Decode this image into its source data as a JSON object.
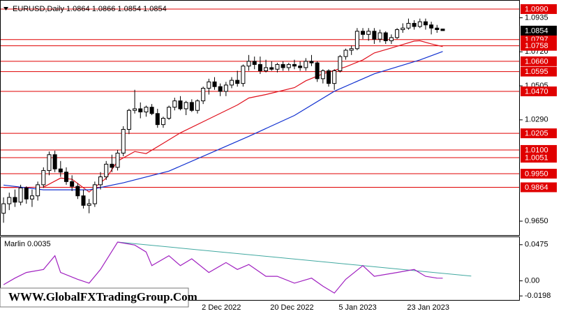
{
  "chart_data": [
    {
      "type": "candlestick",
      "title": "EURUSD,Daily  1.0864 1.0866 1.0854 1.0854",
      "categories": [
        null,
        null,
        null,
        null,
        null,
        null,
        null,
        null,
        null,
        null,
        null,
        null,
        null,
        null,
        null,
        null,
        null,
        null,
        null,
        null,
        null,
        null,
        null,
        null,
        null,
        null,
        null,
        null,
        null,
        null,
        null,
        null,
        null,
        null,
        null,
        "2 Dec 2022",
        null,
        null,
        null,
        null,
        null,
        null,
        null,
        null,
        null,
        null,
        null,
        "20 Dec 2022",
        null,
        null,
        null,
        null,
        null,
        null,
        null,
        null,
        null,
        null,
        null,
        "5 Jan 2023",
        null,
        null,
        null,
        null,
        null,
        null,
        null,
        null,
        null,
        null,
        null,
        "23 Jan 2023",
        null,
        null,
        null,
        null,
        null,
        null
      ],
      "open": [
        0.97,
        0.976,
        0.98,
        0.977,
        0.986,
        0.979,
        0.981,
        0.988,
        0.997,
        1.007,
        0.998,
        0.996,
        0.99,
        0.987,
        0.981,
        0.975,
        0.976,
        0.988,
        0.993,
        1.001,
        0.999,
        1.008,
        1.023,
        1.035,
        1.036,
        1.034,
        1.037,
        1.033,
        1.026,
        1.03,
        1.037,
        1.041,
        1.036,
        1.04,
        1.035,
        1.041,
        1.049,
        1.053,
        1.05,
        1.047,
        1.051,
        1.054,
        1.052,
        1.063,
        1.066,
        1.064,
        1.06,
        1.062,
        1.061,
        1.064,
        1.062,
        1.064,
        1.063,
        1.062,
        1.066,
        1.065,
        1.055,
        1.06,
        1.052,
        1.06,
        1.069,
        1.073,
        1.074,
        1.085,
        1.083,
        1.085,
        1.08,
        1.084,
        1.079,
        1.081,
        1.086,
        1.087,
        1.09,
        1.088,
        1.091,
        1.089,
        1.087,
        1.0864
      ],
      "high": [
        0.98,
        0.983,
        0.985,
        0.988,
        0.987,
        0.985,
        0.99,
        0.999,
        1.009,
        1.0095,
        1.003,
        0.999,
        0.994,
        0.989,
        0.985,
        0.979,
        0.99,
        0.996,
        1.003,
        1.007,
        1.01,
        1.025,
        1.036,
        1.048,
        1.04,
        1.038,
        1.039,
        1.036,
        1.031,
        1.038,
        1.043,
        1.044,
        1.041,
        1.042,
        1.042,
        1.05,
        1.055,
        1.056,
        1.052,
        1.053,
        1.056,
        1.06,
        1.064,
        1.07,
        1.069,
        1.069,
        1.067,
        1.066,
        1.065,
        1.066,
        1.065,
        1.067,
        1.066,
        1.068,
        1.07,
        1.066,
        1.061,
        1.061,
        1.061,
        1.07,
        1.074,
        1.076,
        1.087,
        1.087,
        1.087,
        1.087,
        1.086,
        1.085,
        1.083,
        1.087,
        1.09,
        1.093,
        1.092,
        1.093,
        1.093,
        1.091,
        1.089,
        1.0866
      ],
      "low": [
        0.964,
        0.972,
        0.974,
        0.975,
        0.976,
        0.974,
        0.978,
        0.986,
        0.994,
        0.996,
        0.993,
        0.988,
        0.984,
        0.979,
        0.973,
        0.97,
        0.974,
        0.985,
        0.991,
        0.996,
        0.997,
        1.006,
        1.02,
        1.033,
        1.03,
        1.031,
        1.032,
        1.024,
        1.024,
        1.029,
        1.035,
        1.035,
        1.032,
        1.034,
        1.033,
        1.039,
        1.045,
        1.048,
        1.044,
        1.044,
        1.049,
        1.05,
        1.05,
        1.06,
        1.061,
        1.058,
        1.059,
        1.06,
        1.059,
        1.06,
        1.06,
        1.061,
        1.06,
        1.06,
        1.063,
        1.053,
        1.052,
        1.05,
        1.048,
        1.059,
        1.067,
        1.07,
        1.073,
        1.08,
        1.079,
        1.077,
        1.078,
        1.077,
        1.077,
        1.08,
        1.084,
        1.086,
        1.086,
        1.087,
        1.086,
        1.083,
        1.084,
        1.0854
      ],
      "close": [
        0.976,
        0.98,
        0.977,
        0.986,
        0.979,
        0.981,
        0.988,
        0.997,
        1.007,
        0.998,
        0.996,
        0.99,
        0.987,
        0.981,
        0.975,
        0.976,
        0.988,
        0.993,
        1.001,
        0.999,
        1.008,
        1.023,
        1.035,
        1.036,
        1.034,
        1.037,
        1.033,
        1.026,
        1.03,
        1.037,
        1.041,
        1.036,
        1.04,
        1.035,
        1.041,
        1.049,
        1.053,
        1.05,
        1.047,
        1.051,
        1.054,
        1.052,
        1.063,
        1.066,
        1.064,
        1.06,
        1.062,
        1.061,
        1.064,
        1.062,
        1.064,
        1.063,
        1.062,
        1.066,
        1.065,
        1.055,
        1.06,
        1.052,
        1.06,
        1.069,
        1.073,
        1.074,
        1.085,
        1.083,
        1.085,
        1.08,
        1.084,
        1.079,
        1.081,
        1.086,
        1.087,
        1.09,
        1.088,
        1.091,
        1.089,
        1.087,
        1.086,
        1.0854
      ],
      "colors": {
        "up": "#ffffff",
        "down": "#000000",
        "wick": "#000000"
      },
      "series": [
        {
          "color": "#e0101c",
          "x": [
            0,
            7,
            10,
            12,
            15,
            18,
            20,
            23,
            25,
            28,
            31,
            36,
            41,
            43,
            46,
            51,
            53,
            56,
            58,
            60,
            63,
            65,
            68,
            70,
            72,
            73,
            75,
            77
          ],
          "values": [
            0.9862,
            0.9865,
            0.9922,
            0.9915,
            0.9834,
            0.9922,
            1.003,
            1.009,
            1.0077,
            1.0142,
            1.0208,
            1.0296,
            1.0384,
            1.0428,
            1.045,
            1.0494,
            1.0537,
            1.0581,
            1.0603,
            1.0625,
            1.0669,
            1.0713,
            1.0744,
            1.0766,
            1.0788,
            1.079,
            1.077,
            1.0753
          ]
        },
        {
          "color": "#1030d0",
          "x": [
            0,
            7,
            15,
            21,
            29,
            36,
            43,
            51,
            58,
            65,
            73,
            77
          ],
          "values": [
            0.9878,
            0.9848,
            0.9848,
            0.9892,
            0.9966,
            1.0076,
            1.0186,
            1.0318,
            1.0471,
            1.0581,
            1.0669,
            1.0722
          ]
        }
      ],
      "xlim": [
        -0.5,
        90.4
      ],
      "ylim": [
        0.9562,
        1.1043
      ],
      "yticks": [
        1.0935,
        {
          "value": 1.072,
          "label": "1.0720"
        },
        1.0505,
        {
          "value": 1.029,
          "label": "1.0290"
        },
        {
          "value": 0.965,
          "label": "0.9650"
        }
      ],
      "level_color": "#e00000",
      "levels": [
        {
          "value": 1.099,
          "label": "1.0990"
        },
        {
          "value": 1.0797,
          "label": "1.0797"
        },
        {
          "value": 1.0758,
          "label": "1.0758"
        },
        {
          "value": 1.066,
          "label": "1.0660"
        },
        {
          "value": 1.0595,
          "label": "1.0595"
        },
        {
          "value": 1.047,
          "label": "1.0470"
        },
        {
          "value": 1.0205,
          "label": "1.0205"
        },
        {
          "value": 1.01,
          "label": "1.0100"
        },
        {
          "value": 1.0051,
          "label": "1.0051"
        },
        {
          "value": 0.995,
          "label": "0.9950"
        },
        {
          "value": 0.9864,
          "label": "0.9864"
        }
      ],
      "current_price": 1.0854
    },
    {
      "type": "line",
      "title": "Marlin 0.0035",
      "series": [
        {
          "color": "#a020c0",
          "x": [
            0,
            2,
            4,
            7,
            9,
            10,
            13,
            15,
            17,
            20,
            23,
            25,
            26,
            29,
            31,
            33,
            36,
            39,
            41,
            43,
            46,
            48,
            51,
            54,
            56,
            58,
            60,
            63,
            65,
            69,
            72,
            74,
            76,
            77
          ],
          "values": [
            -0.005,
            0.0036,
            0.011,
            0.015,
            0.033,
            0.011,
            0.002,
            -0.003,
            0.015,
            0.051,
            0.047,
            0.038,
            0.02,
            0.033,
            0.02,
            0.029,
            0.011,
            0.024,
            0.015,
            0.0215,
            0.006,
            0.006,
            -0.003,
            0.0036,
            -0.007,
            -0.016,
            0.002,
            0.02,
            0.006,
            0.011,
            0.015,
            0.006,
            0.0036,
            0.0035
          ]
        }
      ],
      "trendline": {
        "color": "#40a8a0",
        "x": [
          20,
          82
        ],
        "values": [
          0.051,
          0.0063
        ]
      },
      "xlim": [
        -0.5,
        90.4
      ],
      "ylim": [
        -0.0251,
        0.0574
      ],
      "yticks": [
        0.0475,
        {
          "value": 0,
          "label": "0.00"
        },
        -0.0198
      ]
    }
  ],
  "watermark": "WWW.GlobalFXTradingGroup.Com"
}
